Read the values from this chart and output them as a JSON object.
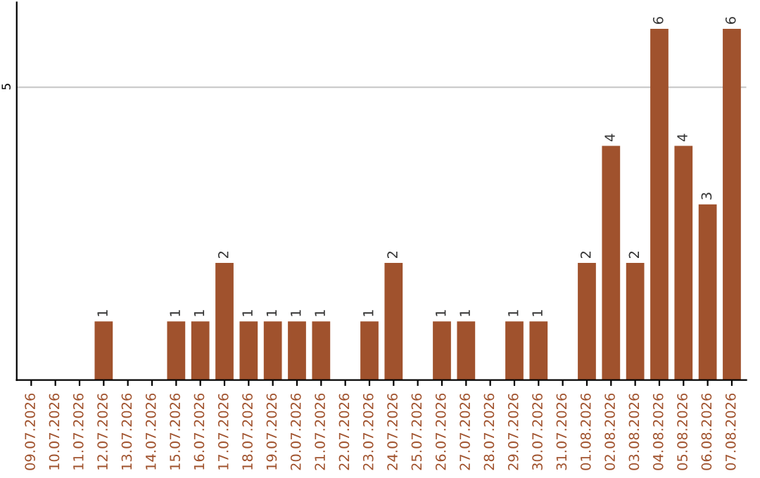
{
  "chart_data": {
    "type": "bar",
    "categories": [
      "09.07.2026",
      "10.07.2026",
      "11.07.2026",
      "12.07.2026",
      "13.07.2026",
      "14.07.2026",
      "15.07.2026",
      "16.07.2026",
      "17.07.2026",
      "18.07.2026",
      "19.07.2026",
      "20.07.2026",
      "21.07.2026",
      "22.07.2026",
      "23.07.2026",
      "24.07.2026",
      "25.07.2026",
      "26.07.2026",
      "27.07.2026",
      "28.07.2026",
      "29.07.2026",
      "30.07.2026",
      "31.07.2026",
      "01.08.2026",
      "02.08.2026",
      "03.08.2026",
      "04.08.2026",
      "05.08.2026",
      "06.08.2026",
      "07.08.2026"
    ],
    "values": [
      0,
      0,
      0,
      1,
      0,
      0,
      1,
      1,
      2,
      1,
      1,
      1,
      1,
      0,
      1,
      2,
      0,
      1,
      1,
      0,
      1,
      1,
      0,
      2,
      4,
      2,
      6,
      4,
      3,
      6
    ],
    "value_labels": [
      null,
      null,
      null,
      "1",
      null,
      null,
      "1",
      "1",
      "2",
      "1",
      "1",
      "1",
      "1",
      null,
      "1",
      "2",
      null,
      "1",
      "1",
      null,
      "1",
      "1",
      null,
      "2",
      "4",
      "2",
      "6",
      "4",
      "3",
      "6"
    ],
    "color": "#a0522d",
    "ylim": [
      0,
      6.45
    ],
    "yticks": [
      5
    ],
    "grid": "y",
    "legend": false
  }
}
